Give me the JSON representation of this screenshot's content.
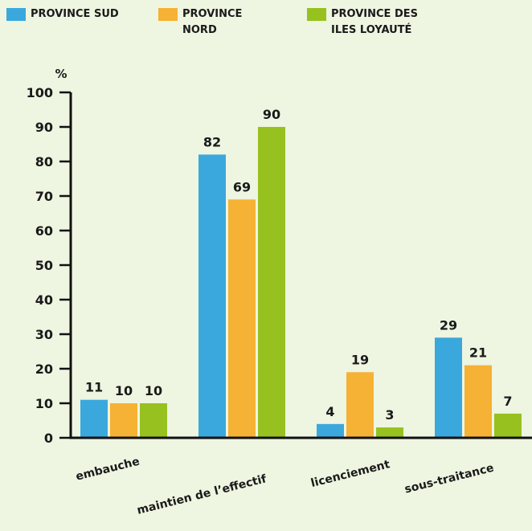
{
  "chart_data": {
    "type": "bar",
    "y_label": "%",
    "categories": [
      "embauche",
      "maintien de l’effectif",
      "licenciement",
      "sous-traitance"
    ],
    "series": [
      {
        "name": "PROVINCE SUD",
        "color": "#3aa8dc",
        "values": [
          11,
          82,
          4,
          29
        ]
      },
      {
        "name": "PROVINCE NORD",
        "color": "#f6b234",
        "values": [
          10,
          69,
          19,
          21
        ]
      },
      {
        "name": "PROVINCE DES ILES LOYAUTÉ",
        "color": "#97c11f",
        "values": [
          10,
          90,
          3,
          7
        ]
      }
    ],
    "ylim": [
      0,
      100
    ],
    "yticks": [
      0,
      10,
      20,
      30,
      40,
      50,
      60,
      70,
      80,
      90,
      100
    ]
  }
}
